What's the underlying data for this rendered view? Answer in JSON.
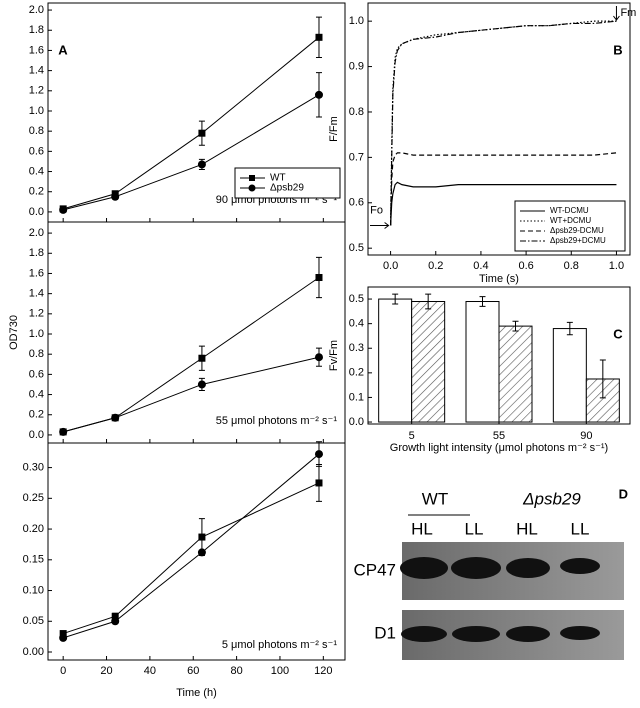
{
  "chart_data": [
    {
      "type": "line",
      "panel_label": "A",
      "annotation": "90 μmol photons m⁻² s⁻¹",
      "legend": "right",
      "x": [
        0,
        24,
        64,
        118
      ],
      "xlim": [
        -7,
        130
      ],
      "xticks": [
        0,
        20,
        40,
        60,
        80,
        100,
        120
      ],
      "show_xtick_labels": false,
      "ylim": [
        -0.1,
        2.07
      ],
      "yticks": [
        {
          "value": 0,
          "label": "0.0"
        },
        0.2,
        0.4,
        0.6,
        0.8,
        {
          "value": 1,
          "label": "1.0"
        },
        1.2,
        1.4,
        1.6,
        1.8,
        {
          "value": 2,
          "label": "2.0"
        }
      ],
      "series": [
        {
          "name": "WT",
          "color": "#000",
          "marker": "square",
          "values": [
            0.03,
            0.18,
            0.78,
            1.73
          ],
          "errors": [
            null,
            0.02,
            0.12,
            0.2
          ]
        },
        {
          "name": "Δpsb29",
          "color": "#000",
          "marker": "circle",
          "values": [
            0.02,
            0.15,
            0.47,
            1.16
          ],
          "errors": [
            null,
            0.02,
            0.05,
            0.22
          ]
        }
      ]
    },
    {
      "type": "line",
      "annotation": "55 μmol photons m⁻² s⁻¹",
      "ylabel": "OD730",
      "x": [
        0,
        24,
        64,
        118
      ],
      "xlim": [
        -7,
        130
      ],
      "xticks": [
        0,
        20,
        40,
        60,
        80,
        100,
        120
      ],
      "show_xtick_labels": false,
      "ylim": [
        -0.08,
        2.11
      ],
      "yticks": [
        {
          "value": 0,
          "label": "0.0"
        },
        0.2,
        0.4,
        0.6,
        0.8,
        {
          "value": 1,
          "label": "1.0"
        },
        1.2,
        1.4,
        1.6,
        1.8,
        {
          "value": 2,
          "label": "2.0"
        }
      ],
      "series": [
        {
          "color": "#000",
          "marker": "square",
          "values": [
            0.03,
            0.17,
            0.76,
            1.56
          ],
          "errors": [
            null,
            null,
            0.12,
            0.2
          ]
        },
        {
          "color": "#000",
          "marker": "circle",
          "values": [
            0.03,
            0.17,
            0.5,
            0.77
          ],
          "errors": [
            null,
            null,
            0.06,
            0.09
          ]
        }
      ]
    },
    {
      "type": "line",
      "annotation": "5 μmol photons m⁻² s⁻¹",
      "xlabel": "Time (h)",
      "x": [
        0,
        24,
        64,
        118
      ],
      "xlim": [
        -7,
        130
      ],
      "xticks": [
        0,
        20,
        40,
        60,
        80,
        100,
        120
      ],
      "show_xtick_labels": true,
      "ylim": [
        -0.013,
        0.34
      ],
      "yticks": [
        {
          "value": 0,
          "label": "0.00"
        },
        0.05,
        {
          "value": 0.1,
          "label": "0.10"
        },
        0.15,
        {
          "value": 0.2,
          "label": "0.20"
        },
        0.25,
        {
          "value": 0.3,
          "label": "0.30"
        }
      ],
      "series": [
        {
          "color": "#000",
          "marker": "square",
          "values": [
            0.03,
            0.058,
            0.187,
            0.275
          ],
          "errors": [
            null,
            0.005,
            0.03,
            0.03
          ]
        },
        {
          "color": "#000",
          "marker": "circle",
          "values": [
            0.023,
            0.05,
            0.162,
            0.322
          ],
          "errors": [
            null,
            null,
            null,
            0.02
          ]
        }
      ]
    },
    {
      "type": "line",
      "panel_label": "B",
      "xlabel": "Time (s)",
      "ylabel": "F/Fm",
      "fo_label": "Fo",
      "fm_label": "Fm",
      "legend": "lower right",
      "x": [
        0,
        0.005,
        0.01,
        0.02,
        0.03,
        0.05,
        0.1,
        0.2,
        0.3,
        0.4,
        0.5,
        0.6,
        0.7,
        0.8,
        0.9,
        1.0
      ],
      "xlim": [
        -0.1,
        1.06
      ],
      "show_xtick_labels": true,
      "xticks": [
        {
          "value": 0,
          "label": "0.0"
        },
        0.2,
        0.4,
        0.6,
        0.8,
        {
          "value": 1,
          "label": "1.0"
        }
      ],
      "ylim": [
        0.485,
        1.04
      ],
      "yticks": [
        0.5,
        0.6,
        0.7,
        0.8,
        0.9,
        {
          "value": 1,
          "label": "1.0"
        }
      ],
      "series": [
        {
          "name": "WT-DCMU",
          "color": "#000",
          "dash": "solid",
          "values": [
            0.55,
            0.6,
            0.62,
            0.64,
            0.645,
            0.64,
            0.635,
            0.635,
            0.64,
            0.64,
            0.64,
            0.64,
            0.64,
            0.64,
            0.64,
            0.64
          ]
        },
        {
          "name": "WT+DCMU",
          "color": "#000",
          "dash": "dotted",
          "values": [
            0.55,
            0.72,
            0.85,
            0.92,
            0.94,
            0.95,
            0.96,
            0.97,
            0.975,
            0.98,
            0.985,
            0.99,
            0.99,
            0.995,
            1.0,
            1.0
          ]
        },
        {
          "name": "Δpsb29-DCMU",
          "color": "#000",
          "dash": "dashed",
          "values": [
            0.55,
            0.65,
            0.69,
            0.705,
            0.71,
            0.71,
            0.705,
            0.705,
            0.705,
            0.705,
            0.705,
            0.705,
            0.705,
            0.705,
            0.705,
            0.71
          ]
        },
        {
          "name": "Δpsb29+DCMU",
          "color": "#000",
          "dash": "dashdot",
          "values": [
            0.55,
            0.7,
            0.84,
            0.91,
            0.935,
            0.95,
            0.96,
            0.965,
            0.975,
            0.98,
            0.985,
            0.99,
            0.99,
            0.995,
            0.995,
            1.0
          ]
        }
      ]
    },
    {
      "type": "bar",
      "panel_label": "C",
      "xlabel": "Growth light intensity (μmol photons m⁻² s⁻¹)",
      "ylabel": "Fv/Fm",
      "categories": [
        "5",
        "55",
        "90"
      ],
      "ylim": [
        -0.008,
        0.549
      ],
      "yticks": [
        {
          "value": 0,
          "label": "0.0"
        },
        0.1,
        0.2,
        0.3,
        0.4,
        0.5
      ],
      "series": [
        {
          "color": "#fff",
          "fill": "plain",
          "values": [
            0.5,
            0.49,
            0.38
          ],
          "errors": [
            0.02,
            0.02,
            0.025
          ]
        },
        {
          "color": "#fff",
          "fill": "hatch",
          "values": [
            0.49,
            0.39,
            0.175
          ],
          "errors": [
            0.03,
            0.02,
            0.077
          ]
        }
      ]
    }
  ],
  "blot": {
    "panel_label": "D",
    "groups": [
      "WT",
      "Δpsb29"
    ],
    "lanes": [
      "HL",
      "LL",
      "HL",
      "LL"
    ],
    "rows": [
      "CP47",
      "D1"
    ]
  }
}
